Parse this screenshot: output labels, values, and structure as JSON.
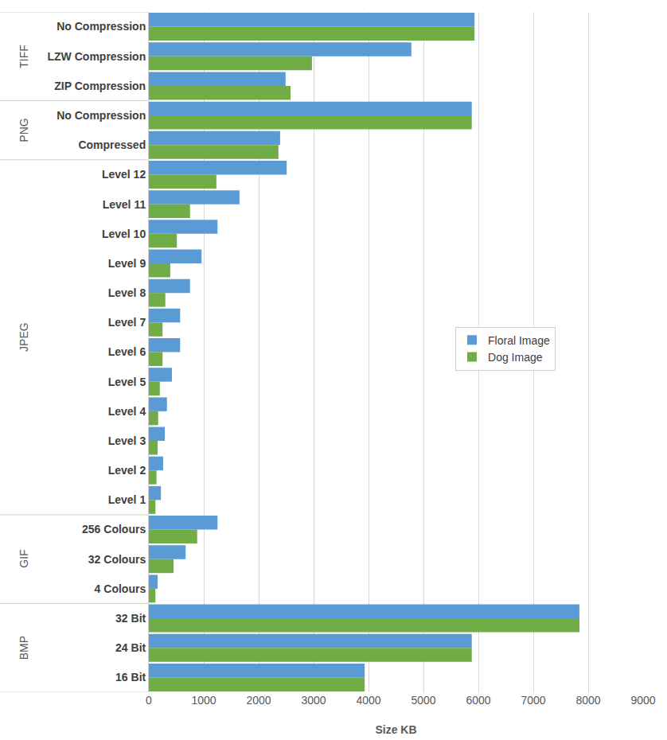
{
  "chart_data": {
    "type": "bar",
    "orientation": "horizontal",
    "x_label": "Size KB",
    "categories": [
      "No Compression",
      "LZW Compression",
      "ZIP Compression",
      "No Compression",
      "Compressed",
      "Level 12",
      "Level 11",
      "Level 10",
      "Level 9",
      "Level 8",
      "Level 7",
      "Level 6",
      "Level 5",
      "Level 4",
      "Level 3",
      "Level 2",
      "Level 1",
      "256 Colours",
      "32 Colours",
      "4 Colours",
      "32 Bit",
      "24 Bit",
      "16 Bit"
    ],
    "groups": [
      {
        "label": "TIFF",
        "count": 3
      },
      {
        "label": "PNG",
        "count": 2
      },
      {
        "label": "JPEG",
        "count": 12
      },
      {
        "label": "GIF",
        "count": 3
      },
      {
        "label": "BMP",
        "count": 3
      }
    ],
    "series": [
      {
        "name": "Floral Image",
        "color": "#5b9bd5",
        "values": [
          5930,
          4780,
          2490,
          5880,
          2390,
          2510,
          1650,
          1250,
          960,
          750,
          570,
          570,
          420,
          330,
          290,
          260,
          220,
          1250,
          670,
          160,
          7840,
          5880,
          3930
        ]
      },
      {
        "name": "Dog Image",
        "color": "#70ad47",
        "values": [
          5930,
          2970,
          2580,
          5880,
          2360,
          1230,
          750,
          510,
          390,
          300,
          250,
          250,
          200,
          170,
          160,
          140,
          120,
          880,
          450,
          120,
          7840,
          5880,
          3930
        ]
      }
    ],
    "xlim": [
      0,
      9000
    ],
    "xticks": [
      0,
      1000,
      2000,
      3000,
      4000,
      5000,
      6000,
      7000,
      8000,
      9000
    ],
    "grid": true,
    "legend": "right"
  }
}
